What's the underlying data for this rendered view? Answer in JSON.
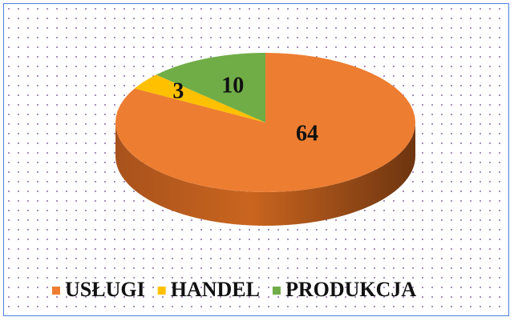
{
  "chart_data": {
    "type": "pie3d",
    "categories": [
      "USŁUGI",
      "HANDEL",
      "PRODUKCJA"
    ],
    "values": [
      64,
      3,
      10
    ],
    "colors": [
      "#ED7D31",
      "#FFC000",
      "#70AD47"
    ],
    "legend": "bottom"
  }
}
